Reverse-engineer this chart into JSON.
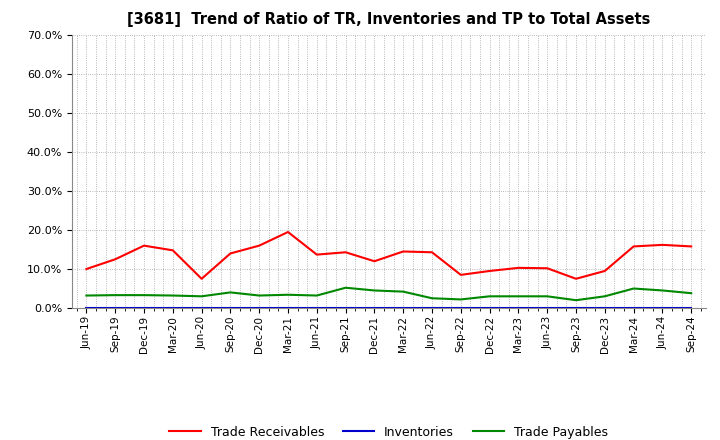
{
  "title": "[3681]  Trend of Ratio of TR, Inventories and TP to Total Assets",
  "x_labels": [
    "Jun-19",
    "Sep-19",
    "Dec-19",
    "Mar-20",
    "Jun-20",
    "Sep-20",
    "Dec-20",
    "Mar-21",
    "Jun-21",
    "Sep-21",
    "Dec-21",
    "Mar-22",
    "Jun-22",
    "Sep-22",
    "Dec-22",
    "Mar-23",
    "Jun-23",
    "Sep-23",
    "Dec-23",
    "Mar-24",
    "Jun-24",
    "Sep-24"
  ],
  "trade_receivables": [
    0.1,
    0.125,
    0.16,
    0.148,
    0.075,
    0.14,
    0.16,
    0.195,
    0.137,
    0.143,
    0.12,
    0.145,
    0.143,
    0.085,
    0.095,
    0.103,
    0.102,
    0.075,
    0.095,
    0.158,
    0.162,
    0.158
  ],
  "inventories": [
    0.001,
    0.001,
    0.001,
    0.001,
    0.001,
    0.001,
    0.001,
    0.001,
    0.001,
    0.001,
    0.001,
    0.001,
    0.001,
    0.001,
    0.001,
    0.001,
    0.001,
    0.001,
    0.001,
    0.001,
    0.001,
    0.001
  ],
  "trade_payables": [
    0.032,
    0.033,
    0.033,
    0.032,
    0.03,
    0.04,
    0.032,
    0.034,
    0.032,
    0.052,
    0.045,
    0.042,
    0.025,
    0.022,
    0.03,
    0.03,
    0.03,
    0.02,
    0.03,
    0.05,
    0.045,
    0.038
  ],
  "tr_color": "#FF0000",
  "inv_color": "#0000CC",
  "tp_color": "#008800",
  "ylim": [
    0.0,
    0.7
  ],
  "yticks": [
    0.0,
    0.1,
    0.2,
    0.3,
    0.4,
    0.5,
    0.6,
    0.7
  ],
  "legend_labels": [
    "Trade Receivables",
    "Inventories",
    "Trade Payables"
  ],
  "background_color": "#FFFFFF",
  "grid_color": "#999999"
}
